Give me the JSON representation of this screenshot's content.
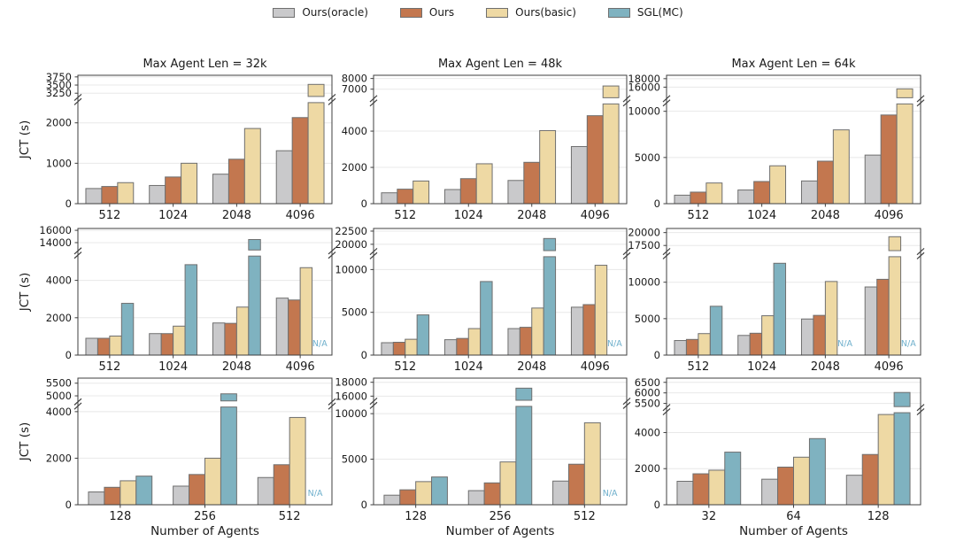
{
  "legend": {
    "items": [
      {
        "label": "Ours(oracle)",
        "color": "#c9c9cb"
      },
      {
        "label": "Ours",
        "color": "#c3774f"
      },
      {
        "label": "Ours(basic)",
        "color": "#eed9a4"
      },
      {
        "label": "SGL(MC)",
        "color": "#7fb2c0"
      }
    ]
  },
  "colors": {
    "bar_edge": "#6f6f6f",
    "grid": "#e8e8e8",
    "frame": "#3f3f3f",
    "text": "#1a1a1a",
    "na": "#6fb0cc"
  },
  "na_text": "N/A",
  "chart_data": [
    {
      "type": "bar",
      "title": "Max Agent Len = 32k",
      "ylabel": "JCT (s)",
      "xlabel": "",
      "categories": [
        "512",
        "1024",
        "2048",
        "4096"
      ],
      "series": [
        {
          "name": "Ours(oracle)",
          "values": [
            375,
            450,
            730,
            1310
          ]
        },
        {
          "name": "Ours",
          "values": [
            425,
            660,
            1100,
            2130
          ]
        },
        {
          "name": "Ours(basic)",
          "values": [
            520,
            1000,
            1860,
            3520
          ]
        }
      ],
      "axis": {
        "broken": true,
        "lower_max": 2500,
        "lower_ticks": [
          0,
          1000,
          2000
        ],
        "upper_min": 3150,
        "upper_max": 3800,
        "upper_ticks": [
          3250,
          3500,
          3750
        ]
      }
    },
    {
      "type": "bar",
      "title": "Max Agent Len = 48k",
      "ylabel": "",
      "xlabel": "",
      "categories": [
        "512",
        "1024",
        "2048",
        "4096"
      ],
      "series": [
        {
          "name": "Ours(oracle)",
          "values": [
            600,
            780,
            1280,
            3150
          ]
        },
        {
          "name": "Ours",
          "values": [
            800,
            1380,
            2280,
            4850
          ]
        },
        {
          "name": "Ours(basic)",
          "values": [
            1250,
            2200,
            4030,
            7300
          ]
        }
      ],
      "axis": {
        "broken": true,
        "lower_max": 5500,
        "lower_ticks": [
          0,
          2000,
          4000
        ],
        "upper_min": 6200,
        "upper_max": 8300,
        "upper_ticks": [
          7000,
          8000
        ]
      }
    },
    {
      "type": "bar",
      "title": "Max Agent Len = 64k",
      "ylabel": "",
      "xlabel": "",
      "categories": [
        "512",
        "1024",
        "2048",
        "4096"
      ],
      "series": [
        {
          "name": "Ours(oracle)",
          "values": [
            920,
            1480,
            2460,
            5260
          ]
        },
        {
          "name": "Ours",
          "values": [
            1250,
            2400,
            4600,
            9600
          ]
        },
        {
          "name": "Ours(basic)",
          "values": [
            2240,
            4100,
            7990,
            15600
          ]
        }
      ],
      "axis": {
        "broken": true,
        "lower_max": 10800,
        "lower_ticks": [
          0,
          5000,
          10000
        ],
        "upper_min": 13500,
        "upper_max": 18800,
        "upper_ticks": [
          16000,
          18000
        ]
      }
    },
    {
      "type": "bar",
      "title": "",
      "ylabel": "JCT (s)",
      "xlabel": "",
      "categories": [
        "512",
        "1024",
        "2048",
        "4096"
      ],
      "series": [
        {
          "name": "Ours(oracle)",
          "values": [
            900,
            1150,
            1720,
            3050
          ]
        },
        {
          "name": "Ours",
          "values": [
            900,
            1150,
            1700,
            2950
          ]
        },
        {
          "name": "Ours(basic)",
          "values": [
            1020,
            1550,
            2570,
            4680
          ]
        },
        {
          "name": "SGL(MC)",
          "values": [
            2770,
            4840,
            14500,
            null
          ]
        }
      ],
      "axis": {
        "broken": true,
        "lower_max": 5300,
        "lower_ticks": [
          0,
          2000,
          4000
        ],
        "upper_min": 12800,
        "upper_max": 16300,
        "upper_ticks": [
          14000,
          16000
        ]
      }
    },
    {
      "type": "bar",
      "title": "",
      "ylabel": "",
      "xlabel": "",
      "categories": [
        "512",
        "1024",
        "2048",
        "4096"
      ],
      "series": [
        {
          "name": "Ours(oracle)",
          "values": [
            1450,
            1800,
            3100,
            5600
          ]
        },
        {
          "name": "Ours",
          "values": [
            1500,
            1950,
            3250,
            5900
          ]
        },
        {
          "name": "Ours(basic)",
          "values": [
            1850,
            3100,
            5500,
            10500
          ]
        },
        {
          "name": "SGL(MC)",
          "values": [
            4700,
            8600,
            21100,
            null
          ]
        }
      ],
      "axis": {
        "broken": true,
        "lower_max": 11500,
        "lower_ticks": [
          0,
          5000,
          10000
        ],
        "upper_min": 18800,
        "upper_max": 23000,
        "upper_ticks": [
          20000,
          22500
        ]
      }
    },
    {
      "type": "bar",
      "title": "",
      "ylabel": "",
      "xlabel": "",
      "categories": [
        "512",
        "1024",
        "2048",
        "4096"
      ],
      "series": [
        {
          "name": "Ours(oracle)",
          "values": [
            2000,
            2700,
            4950,
            9350
          ]
        },
        {
          "name": "Ours",
          "values": [
            2150,
            3000,
            5450,
            10400
          ]
        },
        {
          "name": "Ours(basic)",
          "values": [
            2950,
            5400,
            10100,
            19200
          ]
        },
        {
          "name": "SGL(MC)",
          "values": [
            6700,
            12600,
            null,
            null
          ]
        }
      ],
      "axis": {
        "broken": true,
        "lower_max": 13500,
        "lower_ticks": [
          0,
          5000,
          10000
        ],
        "upper_min": 16500,
        "upper_max": 20800,
        "upper_ticks": [
          17500,
          20000
        ]
      }
    },
    {
      "type": "bar",
      "title": "",
      "ylabel": "JCT (s)",
      "xlabel": "Number of Agents",
      "categories": [
        "128",
        "256",
        "512"
      ],
      "series": [
        {
          "name": "Ours(oracle)",
          "values": [
            550,
            800,
            1170
          ]
        },
        {
          "name": "Ours",
          "values": [
            750,
            1300,
            1720
          ]
        },
        {
          "name": "Ours(basic)",
          "values": [
            1030,
            2000,
            3750
          ]
        },
        {
          "name": "SGL(MC)",
          "values": [
            1230,
            5080,
            null
          ]
        }
      ],
      "axis": {
        "broken": true,
        "lower_max": 4200,
        "lower_ticks": [
          0,
          2000,
          4000
        ],
        "upper_min": 4800,
        "upper_max": 5700,
        "upper_ticks": [
          5000,
          5500
        ]
      }
    },
    {
      "type": "bar",
      "title": "",
      "ylabel": "",
      "xlabel": "Number of Agents",
      "categories": [
        "128",
        "256",
        "512"
      ],
      "series": [
        {
          "name": "Ours(oracle)",
          "values": [
            1050,
            1550,
            2600
          ]
        },
        {
          "name": "Ours",
          "values": [
            1640,
            2400,
            4450
          ]
        },
        {
          "name": "Ours(basic)",
          "values": [
            2540,
            4700,
            9000
          ]
        },
        {
          "name": "SGL(MC)",
          "values": [
            3050,
            17150,
            null
          ]
        }
      ],
      "axis": {
        "broken": true,
        "lower_max": 10800,
        "lower_ticks": [
          0,
          5000,
          10000
        ],
        "upper_min": 15400,
        "upper_max": 18600,
        "upper_ticks": [
          16000,
          18000
        ]
      }
    },
    {
      "type": "bar",
      "title": "",
      "ylabel": "",
      "xlabel": "Number of Agents",
      "categories": [
        "32",
        "64",
        "128"
      ],
      "series": [
        {
          "name": "Ours(oracle)",
          "values": [
            1300,
            1415,
            1635
          ]
        },
        {
          "name": "Ours",
          "values": [
            1715,
            2085,
            2785
          ]
        },
        {
          "name": "Ours(basic)",
          "values": [
            1915,
            2635,
            5000
          ]
        },
        {
          "name": "SGL(MC)",
          "values": [
            2915,
            3665,
            6020
          ]
        }
      ],
      "axis": {
        "broken": true,
        "lower_max": 5100,
        "lower_ticks": [
          0,
          2000,
          4000
        ],
        "upper_min": 5350,
        "upper_max": 6700,
        "upper_ticks": [
          5500,
          6000,
          6500
        ]
      }
    }
  ]
}
